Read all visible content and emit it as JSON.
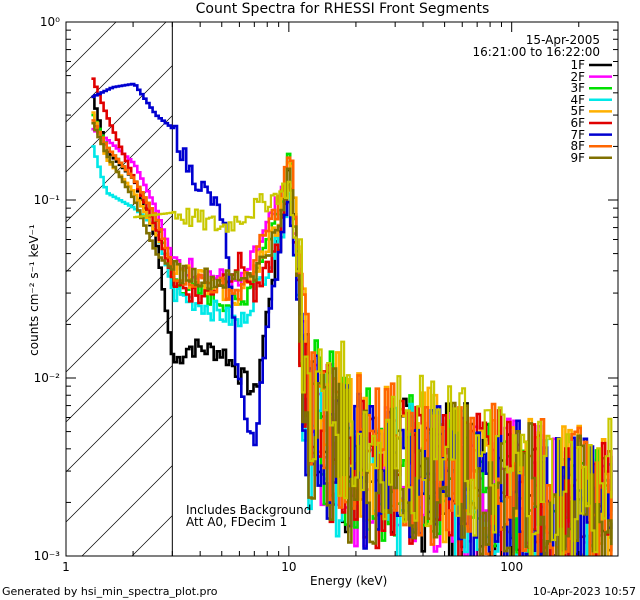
{
  "chart_data": {
    "type": "line",
    "title": "Count Spectra for RHESSI Front Segments",
    "xlabel": "Energy (keV)",
    "ylabel": "counts cm⁻² s⁻¹ keV⁻¹",
    "x_scale": "log",
    "y_scale": "log",
    "xlim": [
      1,
      300
    ],
    "ylim": [
      0.001,
      1
    ],
    "x_ticks": [
      {
        "value": 1,
        "label": "1"
      },
      {
        "value": 10,
        "label": "10"
      },
      {
        "value": 100,
        "label": "100"
      }
    ],
    "y_ticks": [
      {
        "value": 1,
        "label": "10⁰"
      },
      {
        "value": 0.1,
        "label": "10⁻¹"
      },
      {
        "value": 0.01,
        "label": "10⁻²"
      },
      {
        "value": 0.001,
        "label": "10⁻³"
      }
    ],
    "date": "15-Apr-2005",
    "time_range": "16:21:00 to 16:22:00",
    "annotations": [
      "Includes Background",
      "Att A0, FDecim 1"
    ],
    "shaded_region_xmax": 3,
    "series": [
      {
        "name": "1F",
        "color": "#000000",
        "points": [
          [
            1.3,
            0.38
          ],
          [
            1.5,
            0.19
          ],
          [
            2,
            0.13
          ],
          [
            2.5,
            0.06
          ],
          [
            3,
            0.012
          ],
          [
            3.5,
            0.015
          ],
          [
            5,
            0.014
          ],
          [
            7,
            0.008
          ],
          [
            10,
            0.18
          ],
          [
            12,
            0.006
          ],
          [
            20,
            0.003
          ],
          [
            50,
            0.0028
          ],
          [
            100,
            0.0022
          ],
          [
            200,
            0.0016
          ],
          [
            280,
            0.0015
          ]
        ]
      },
      {
        "name": "2F",
        "color": "#ff00ff",
        "points": [
          [
            1.3,
            0.25
          ],
          [
            1.5,
            0.22
          ],
          [
            2,
            0.16
          ],
          [
            2.5,
            0.09
          ],
          [
            3,
            0.045
          ],
          [
            4,
            0.04
          ],
          [
            6,
            0.033
          ],
          [
            9,
            0.1
          ],
          [
            10,
            0.14
          ],
          [
            12,
            0.006
          ],
          [
            20,
            0.003
          ],
          [
            50,
            0.0028
          ],
          [
            100,
            0.0023
          ],
          [
            200,
            0.0017
          ],
          [
            280,
            0.0016
          ]
        ]
      },
      {
        "name": "3F",
        "color": "#00e000",
        "points": [
          [
            1.3,
            0.3
          ],
          [
            1.5,
            0.2
          ],
          [
            2,
            0.13
          ],
          [
            2.5,
            0.08
          ],
          [
            3,
            0.035
          ],
          [
            4,
            0.03
          ],
          [
            6,
            0.025
          ],
          [
            9,
            0.09
          ],
          [
            10,
            0.21
          ],
          [
            12,
            0.007
          ],
          [
            20,
            0.0035
          ],
          [
            50,
            0.003
          ],
          [
            100,
            0.0024
          ],
          [
            200,
            0.0018
          ],
          [
            280,
            0.0016
          ]
        ]
      },
      {
        "name": "4F",
        "color": "#00e8e8",
        "points": [
          [
            1.3,
            0.2
          ],
          [
            1.5,
            0.11
          ],
          [
            2,
            0.09
          ],
          [
            2.5,
            0.07
          ],
          [
            3,
            0.03
          ],
          [
            4,
            0.026
          ],
          [
            6,
            0.02
          ],
          [
            9,
            0.06
          ],
          [
            10,
            0.12
          ],
          [
            12,
            0.005
          ],
          [
            20,
            0.0028
          ],
          [
            50,
            0.0025
          ],
          [
            100,
            0.002
          ],
          [
            200,
            0.0015
          ],
          [
            280,
            0.0014
          ]
        ]
      },
      {
        "name": "5F",
        "color": "#ffb000",
        "points": [
          [
            1.3,
            0.31
          ],
          [
            1.5,
            0.17
          ],
          [
            2,
            0.11
          ],
          [
            2.5,
            0.065
          ],
          [
            3,
            0.04
          ],
          [
            4,
            0.035
          ],
          [
            6,
            0.028
          ],
          [
            9,
            0.08
          ],
          [
            10,
            0.2
          ],
          [
            12,
            0.009
          ],
          [
            20,
            0.004
          ],
          [
            50,
            0.0032
          ],
          [
            100,
            0.0026
          ],
          [
            200,
            0.002
          ],
          [
            280,
            0.0017
          ]
        ]
      },
      {
        "name": "6F",
        "color": "#e00000",
        "points": [
          [
            1.3,
            0.48
          ],
          [
            1.5,
            0.3
          ],
          [
            2,
            0.13
          ],
          [
            2.5,
            0.07
          ],
          [
            3,
            0.035
          ],
          [
            4,
            0.028
          ],
          [
            6,
            0.045
          ],
          [
            7,
            0.028
          ],
          [
            9,
            0.06
          ],
          [
            10,
            0.13
          ],
          [
            12,
            0.006
          ],
          [
            20,
            0.003
          ],
          [
            50,
            0.0028
          ],
          [
            100,
            0.0023
          ],
          [
            200,
            0.0017
          ],
          [
            280,
            0.0015
          ]
        ]
      },
      {
        "name": "7F",
        "color": "#0000d0",
        "points": [
          [
            1.3,
            0.38
          ],
          [
            1.6,
            0.43
          ],
          [
            2,
            0.45
          ],
          [
            2.5,
            0.3
          ],
          [
            3,
            0.25
          ],
          [
            3.5,
            0.15
          ],
          [
            4,
            0.12
          ],
          [
            5,
            0.08
          ],
          [
            5.5,
            0.022
          ],
          [
            6,
            0.008
          ],
          [
            7,
            0.004
          ],
          [
            8,
            0.025
          ],
          [
            10,
            0.1
          ],
          [
            12,
            0.006
          ],
          [
            20,
            0.003
          ],
          [
            50,
            0.0028
          ],
          [
            100,
            0.0022
          ],
          [
            200,
            0.0017
          ],
          [
            280,
            0.0015
          ]
        ]
      },
      {
        "name": "8F",
        "color": "#ff6600",
        "points": [
          [
            1.3,
            0.28
          ],
          [
            1.5,
            0.2
          ],
          [
            2,
            0.13
          ],
          [
            2.5,
            0.08
          ],
          [
            3,
            0.04
          ],
          [
            4,
            0.035
          ],
          [
            6,
            0.03
          ],
          [
            9,
            0.1
          ],
          [
            10,
            0.19
          ],
          [
            12,
            0.008
          ],
          [
            20,
            0.0038
          ],
          [
            50,
            0.003
          ],
          [
            100,
            0.0025
          ],
          [
            200,
            0.0019
          ],
          [
            280,
            0.0016
          ]
        ]
      },
      {
        "name": "9F",
        "color": "#807000",
        "points": [
          [
            1.3,
            0.27
          ],
          [
            1.5,
            0.18
          ],
          [
            2,
            0.1
          ],
          [
            2.5,
            0.05
          ],
          [
            3,
            0.04
          ],
          [
            5,
            0.035
          ],
          [
            7,
            0.04
          ],
          [
            9,
            0.07
          ],
          [
            10,
            0.15
          ],
          [
            12,
            0.006
          ],
          [
            20,
            0.003
          ],
          [
            50,
            0.0027
          ],
          [
            100,
            0.0022
          ],
          [
            200,
            0.0017
          ],
          [
            280,
            0.0015
          ]
        ]
      },
      {
        "name": "",
        "color": "#c8c800",
        "points": [
          [
            2,
            0.08
          ],
          [
            3,
            0.085
          ],
          [
            5,
            0.07
          ],
          [
            8,
            0.1
          ],
          [
            10,
            0.12
          ],
          [
            12,
            0.008
          ],
          [
            20,
            0.005
          ],
          [
            50,
            0.0035
          ],
          [
            100,
            0.0028
          ],
          [
            200,
            0.0024
          ],
          [
            280,
            0.0022
          ]
        ]
      }
    ]
  },
  "footer": {
    "generated_by": "Generated by hsi_min_spectra_plot.pro",
    "timestamp": "10-Apr-2023 10:57"
  }
}
